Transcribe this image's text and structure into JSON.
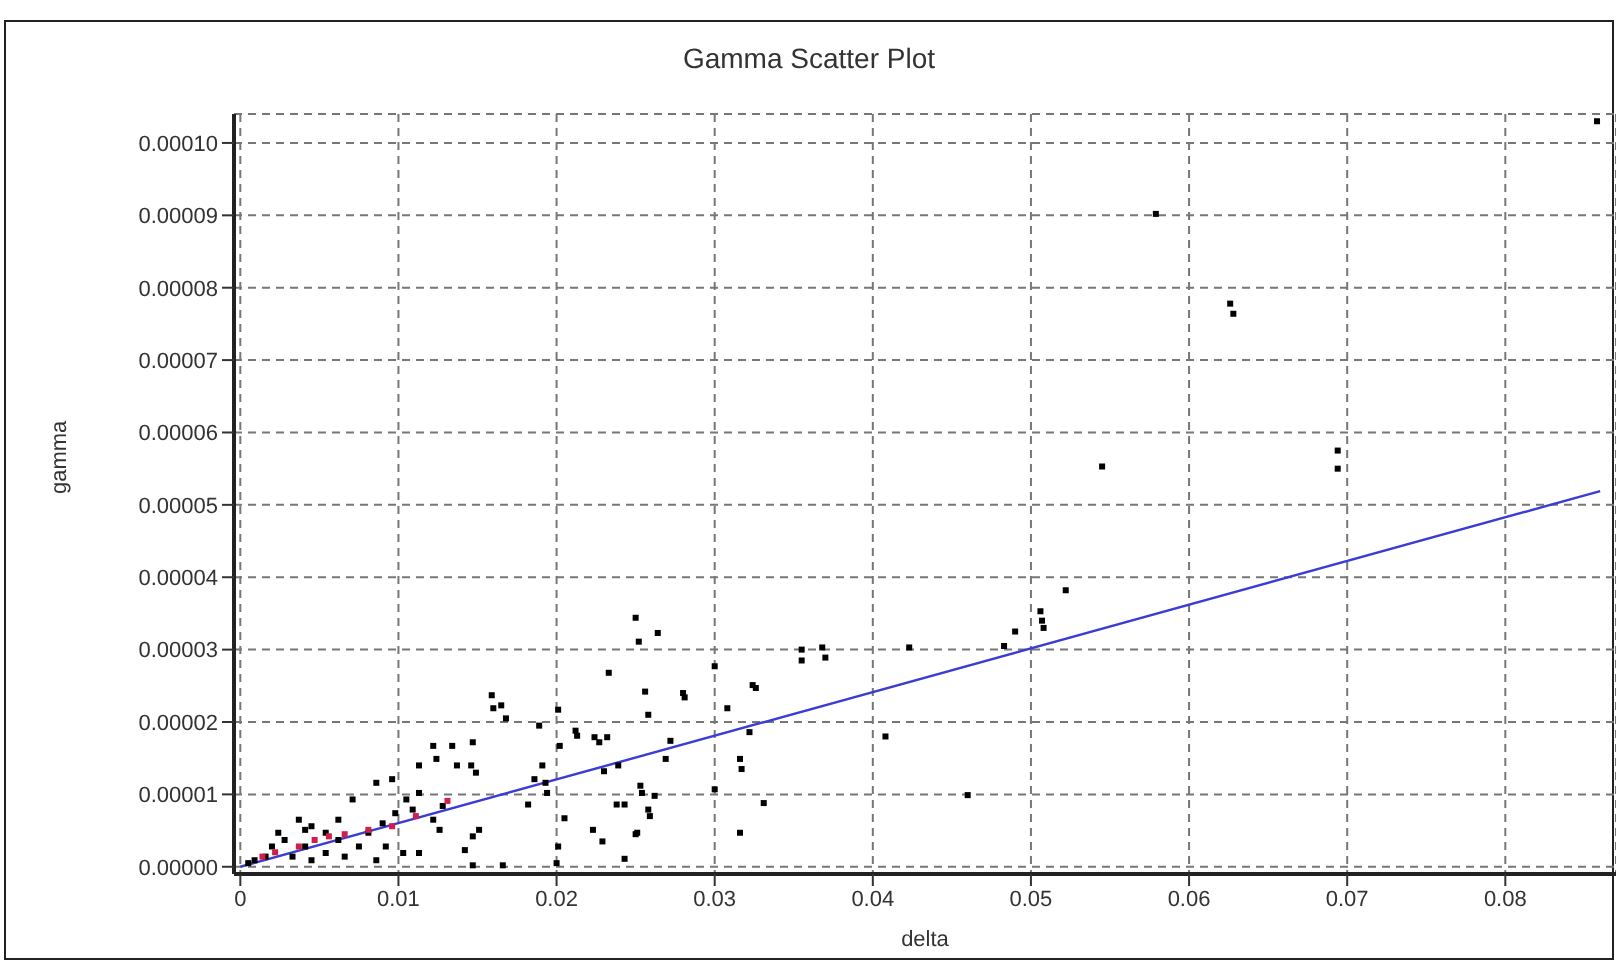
{
  "chart_data": {
    "type": "scatter",
    "title": "Gamma Scatter Plot",
    "xlabel": "delta",
    "ylabel": "gamma",
    "marker": "square",
    "grid": true,
    "legend": false,
    "xlim": [
      -0.0004,
      0.087
    ],
    "xticks": [
      0,
      0.01,
      0.02,
      0.03,
      0.04,
      0.05,
      0.06,
      0.07,
      0.08
    ],
    "ylim": [
      -1e-06,
      0.000104
    ],
    "yticks": [
      {
        "value": 0,
        "label": "0.00000"
      },
      {
        "value": 1e-05,
        "label": "0.00001"
      },
      {
        "value": 2e-05,
        "label": "0.00002"
      },
      {
        "value": 3e-05,
        "label": "0.00003"
      },
      {
        "value": 4e-05,
        "label": "0.00004"
      },
      {
        "value": 5e-05,
        "label": "0.00005"
      },
      {
        "value": 6e-05,
        "label": "0.00006"
      },
      {
        "value": 7e-05,
        "label": "0.00007"
      },
      {
        "value": 8e-05,
        "label": "0.00008"
      },
      {
        "value": 9e-05,
        "label": "0.00009"
      },
      {
        "value": 0.0001,
        "label": "0.00010"
      }
    ],
    "series": [
      {
        "color": "#000000",
        "x": [
          0.0858,
          0.0579,
          0.0626,
          0.0628,
          0.0694,
          0.0694,
          0.0545,
          0.0355,
          0.0355,
          0.0368,
          0.037,
          0.0423,
          0.0408,
          0.046,
          0.0483,
          0.049,
          0.0506,
          0.0507,
          0.0508,
          0.0522,
          0.025,
          0.0252,
          0.0264,
          0.0233,
          0.0256,
          0.0258,
          0.028,
          0.0281,
          0.03,
          0.0308,
          0.0324,
          0.0326,
          0.0316,
          0.0317,
          0.0322,
          0.0331,
          0.0316,
          0.03,
          0.0272,
          0.0269,
          0.0262,
          0.0253,
          0.0254,
          0.0258,
          0.0259,
          0.025,
          0.0251,
          0.0238,
          0.0243,
          0.0243,
          0.023,
          0.0224,
          0.0227,
          0.0232,
          0.0239,
          0.0223,
          0.0229,
          0.0213,
          0.0212,
          0.0202,
          0.0201,
          0.0205,
          0.0201,
          0.02,
          0.0189,
          0.0191,
          0.0193,
          0.0194,
          0.0186,
          0.0182,
          0.0168,
          0.0165,
          0.0159,
          0.016,
          0.0147,
          0.0146,
          0.0134,
          0.0122,
          0.0124,
          0.0149,
          0.0137,
          0.0151,
          0.0147,
          0.0142,
          0.0147,
          0.0166,
          0.0113,
          0.0096,
          0.0086,
          0.0105,
          0.0113,
          0.0128,
          0.0122,
          0.0126,
          0.0113,
          0.0103,
          0.0092,
          0.0086,
          0.0075,
          0.0071,
          0.0062,
          0.0054,
          0.0041,
          0.0037,
          0.0045,
          0.0054,
          0.0028,
          0.002,
          0.0024,
          0.0016,
          0.0009,
          0.0005,
          0.0033,
          0.0045,
          0.0066,
          0.0081,
          0.009,
          0.0098,
          0.0109,
          0.0041,
          0.0062
        ],
        "values": [
          0.000103,
          9.02e-05,
          7.78e-05,
          7.64e-05,
          5.75e-05,
          5.5e-05,
          5.53e-05,
          3e-05,
          2.85e-05,
          3.03e-05,
          2.89e-05,
          3.03e-05,
          1.8e-05,
          9.9e-06,
          3.05e-05,
          3.25e-05,
          3.53e-05,
          3.4e-05,
          3.3e-05,
          3.82e-05,
          3.44e-05,
          3.11e-05,
          3.23e-05,
          2.68e-05,
          2.42e-05,
          2.1e-05,
          2.4e-05,
          2.34e-05,
          2.77e-05,
          2.19e-05,
          2.51e-05,
          2.47e-05,
          1.49e-05,
          1.35e-05,
          1.86e-05,
          8.8e-06,
          4.7e-06,
          1.07e-05,
          1.74e-05,
          1.49e-05,
          9.8e-06,
          1.12e-05,
          1.02e-05,
          7.9e-06,
          7e-06,
          4.5e-06,
          4.7e-06,
          8.6e-06,
          8.6e-06,
          1.1e-06,
          1.32e-05,
          1.79e-05,
          1.72e-05,
          1.79e-05,
          1.4e-05,
          5.1e-06,
          3.5e-06,
          1.81e-05,
          1.88e-05,
          1.67e-05,
          2.17e-05,
          6.7e-06,
          2.8e-06,
          5e-07,
          1.95e-05,
          1.4e-05,
          1.16e-05,
          1.02e-05,
          1.21e-05,
          8.6e-06,
          2.05e-05,
          2.23e-05,
          2.37e-05,
          2.19e-05,
          1.72e-05,
          1.4e-05,
          1.67e-05,
          1.67e-05,
          1.49e-05,
          1.3e-05,
          1.4e-05,
          5.1e-06,
          4.2e-06,
          2.3e-06,
          2e-07,
          2e-07,
          1.4e-05,
          1.21e-05,
          1.16e-05,
          9.3e-06,
          1.02e-05,
          8.4e-06,
          6.5e-06,
          5.1e-06,
          1.9e-06,
          1.9e-06,
          2.8e-06,
          9e-07,
          2.8e-06,
          9.3e-06,
          6.5e-06,
          1.9e-06,
          2.8e-06,
          6.5e-06,
          5.6e-06,
          4.7e-06,
          3.7e-06,
          2.8e-06,
          4.7e-06,
          1.4e-06,
          9e-07,
          5e-07,
          1.4e-06,
          9e-07,
          1.4e-06,
          4.7e-06,
          6e-06,
          7.4e-06,
          7.9e-06,
          5.1e-06,
          3.7e-06
        ]
      },
      {
        "color": "#d0204a",
        "x": [
          0.0014,
          0.0022,
          0.0037,
          0.0047,
          0.0056,
          0.0066,
          0.0081,
          0.0096,
          0.0111,
          0.0131
        ],
        "values": [
          1.4e-06,
          2e-06,
          2.8e-06,
          3.7e-06,
          4.2e-06,
          4.5e-06,
          5.1e-06,
          5.6e-06,
          7e-06,
          9.1e-06
        ]
      },
      {
        "type": "line",
        "color": "#3b3bd6",
        "marker": "none",
        "x": [
          0,
          0.086
        ],
        "values": [
          0,
          5.19e-05
        ]
      }
    ]
  }
}
